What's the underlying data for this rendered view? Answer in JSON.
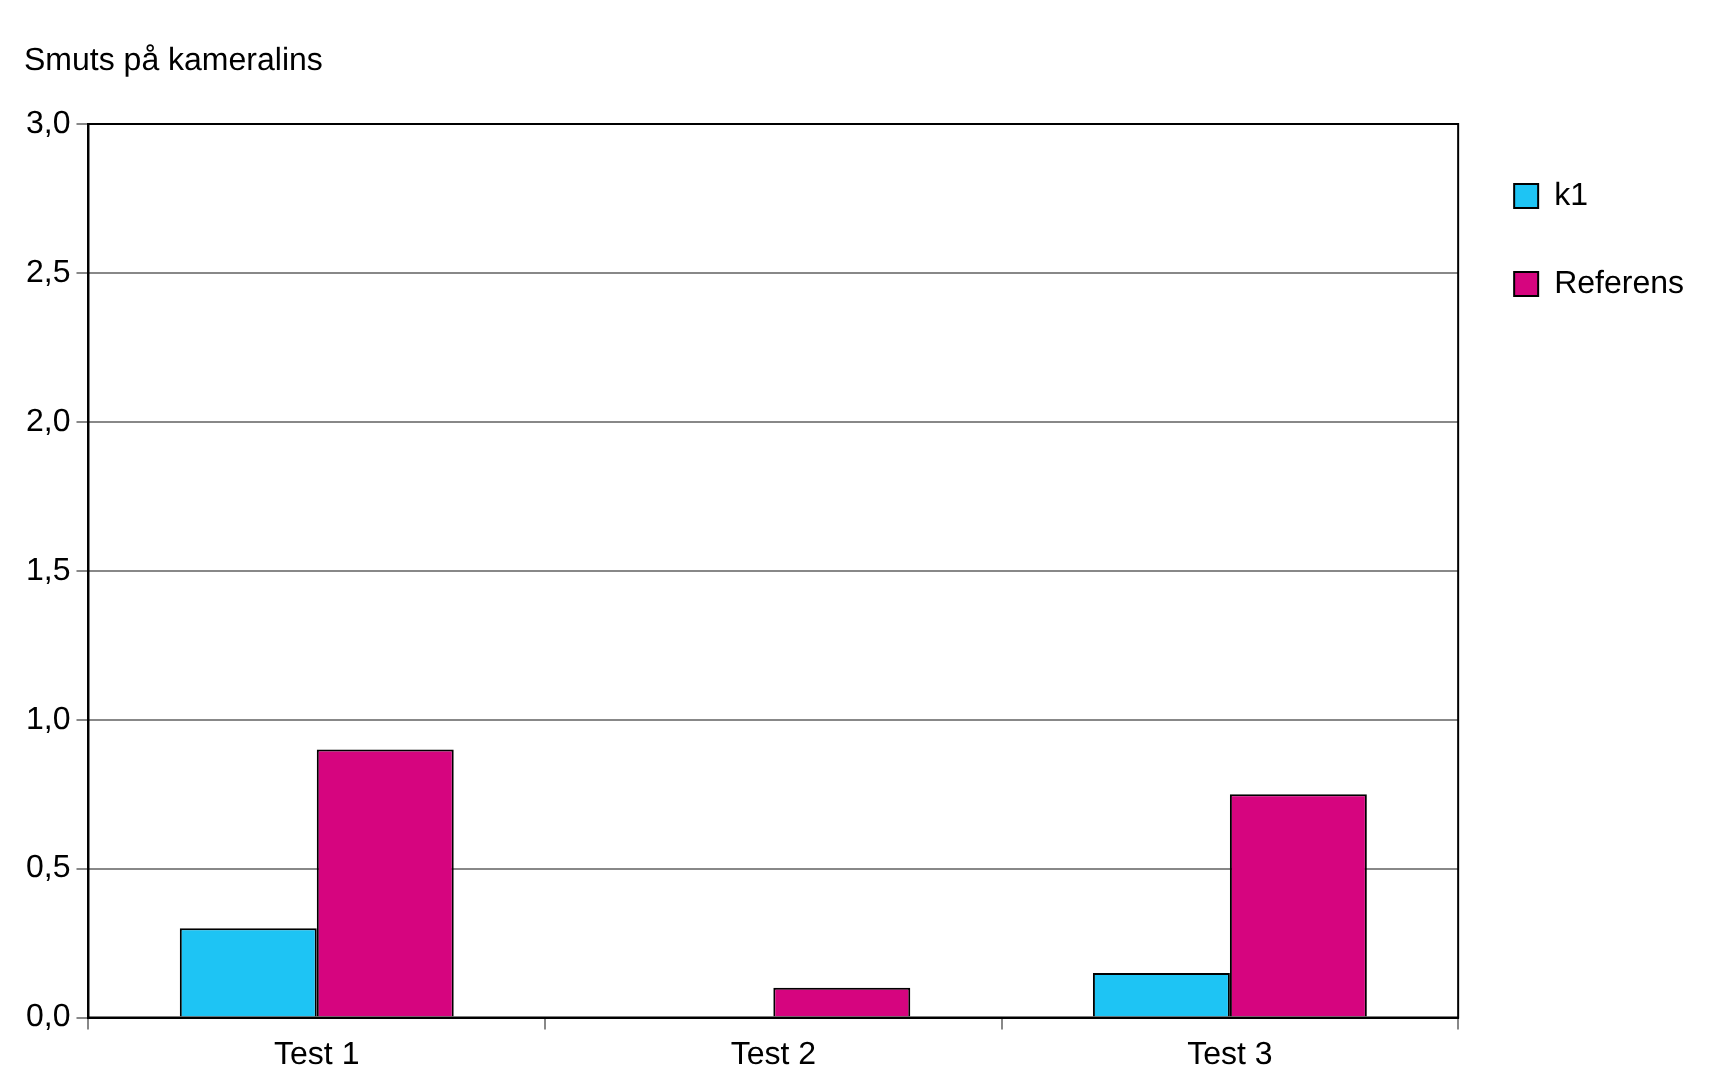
{
  "chart_data": {
    "type": "bar",
    "title": "Smuts på kameralins",
    "categories": [
      "Test 1",
      "Test 2",
      "Test 3"
    ],
    "series": [
      {
        "name": "k1",
        "color": "#1ec4f4",
        "values": [
          0.3,
          0,
          0.15
        ]
      },
      {
        "name": "Referens",
        "color": "#d6057f",
        "values": [
          0.9,
          0.1,
          0.75
        ]
      }
    ],
    "ylim": [
      0,
      3
    ],
    "yticks": [
      {
        "value": 0,
        "label": "0,0"
      },
      {
        "value": 0.5,
        "label": "0,5"
      },
      {
        "value": 1,
        "label": "1,0"
      },
      {
        "value": 1.5,
        "label": "1,5"
      },
      {
        "value": 2,
        "label": "2,0"
      },
      {
        "value": 2.5,
        "label": "2,5"
      },
      {
        "value": 3,
        "label": "3,0"
      }
    ],
    "grid": "y",
    "legend": "right"
  }
}
